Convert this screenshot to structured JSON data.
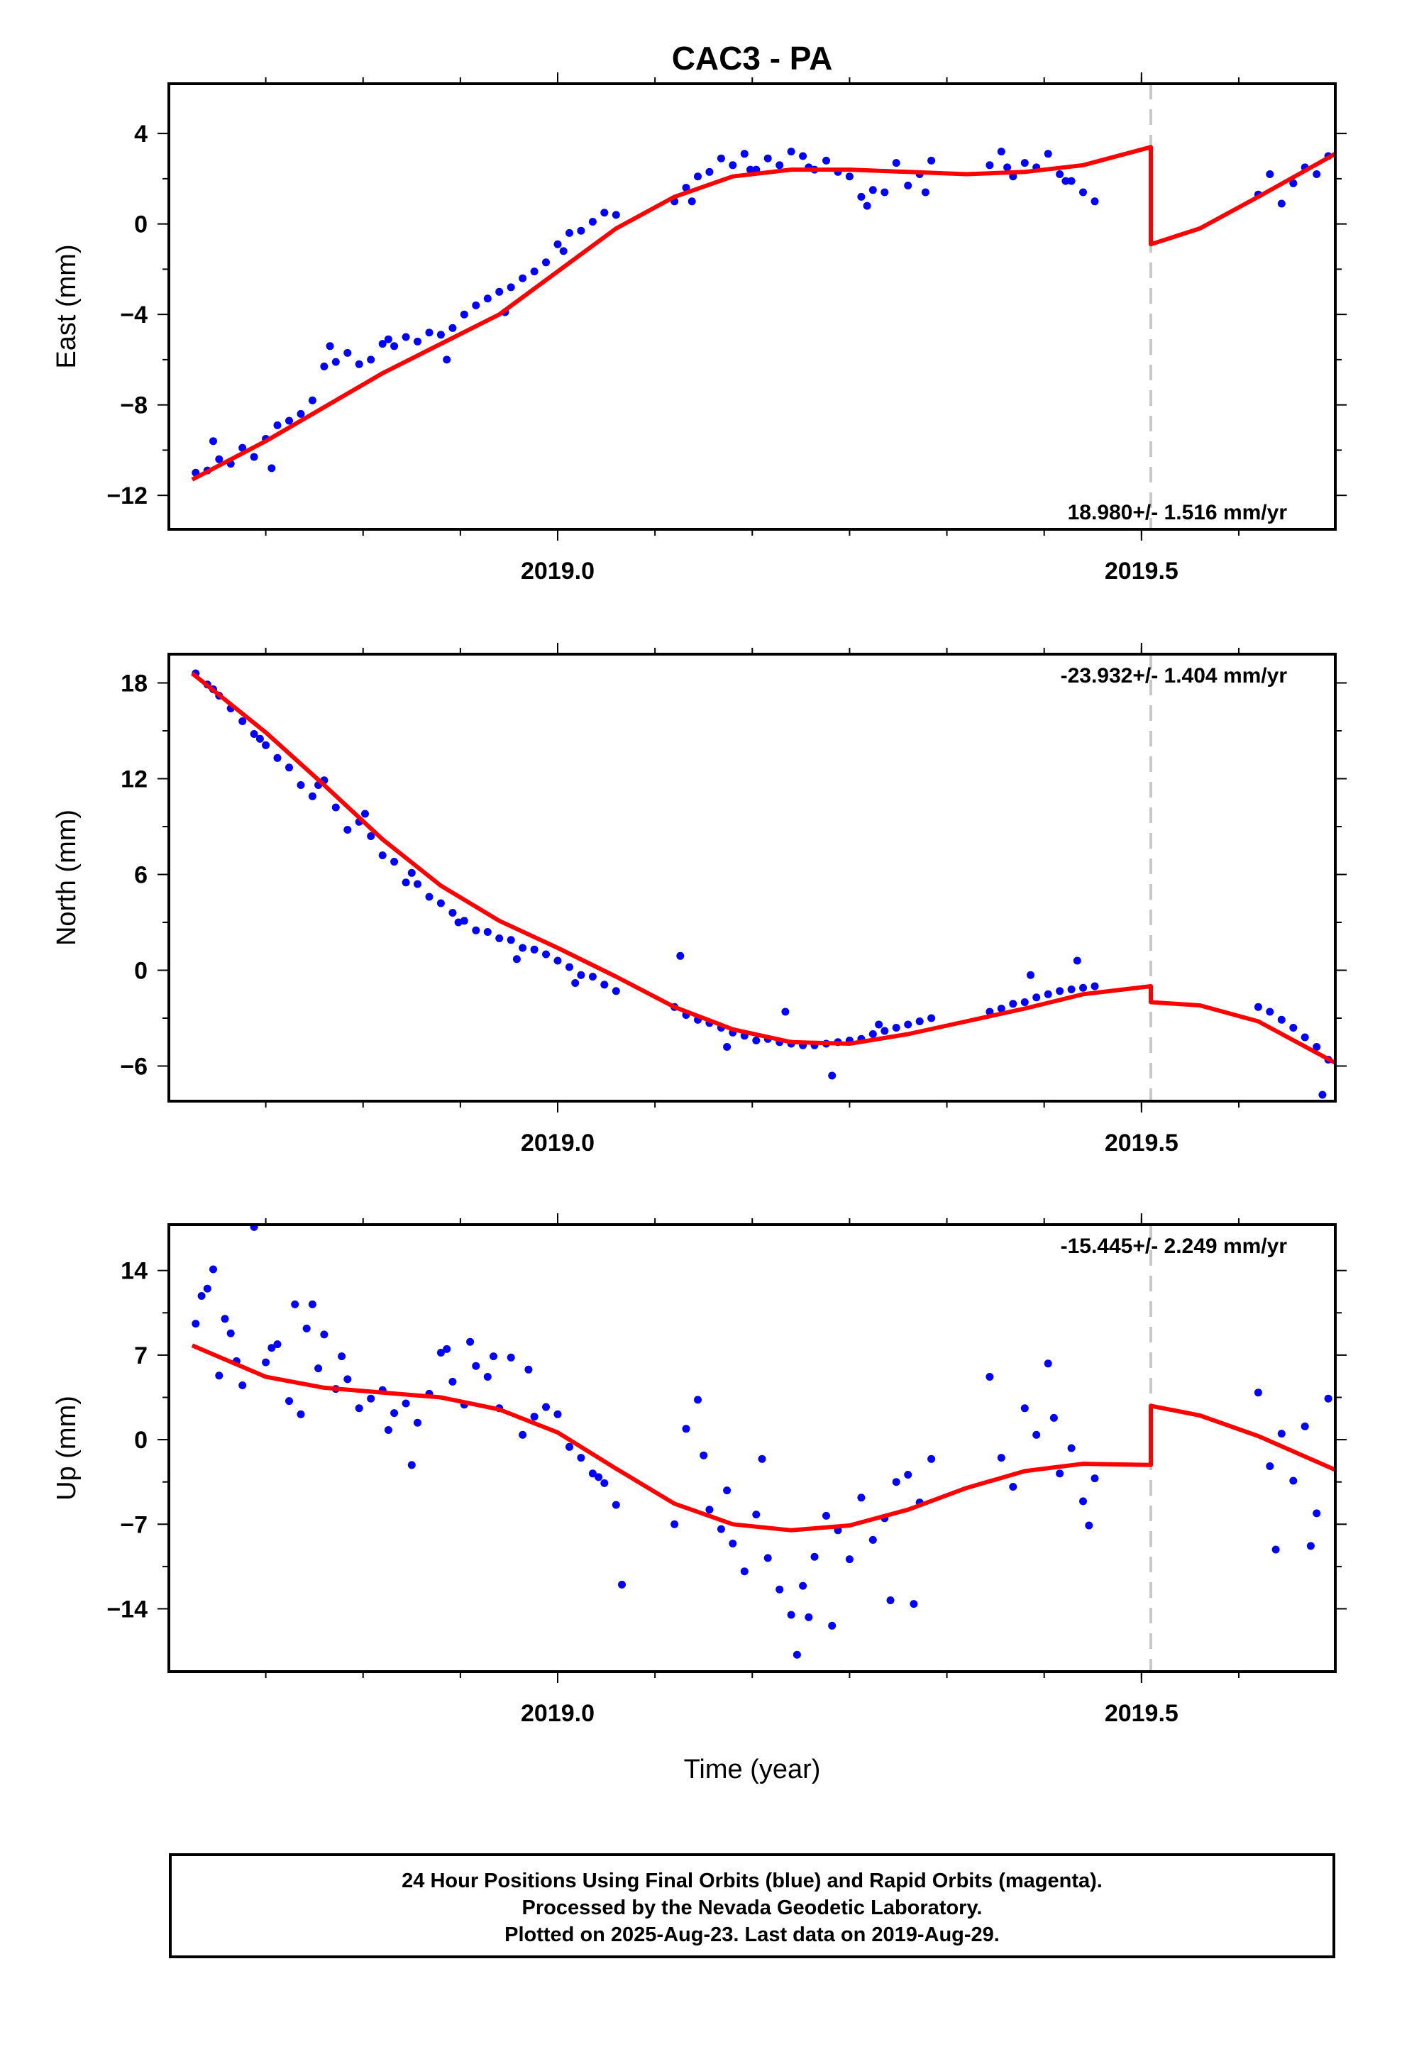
{
  "chart_data": [
    {
      "type": "scatter",
      "panel": "east",
      "title": "CAC3 - PA",
      "ylabel": "East (mm)",
      "xlabel": "",
      "xlim": [
        2018.667,
        2019.666
      ],
      "ylim": [
        -13.5,
        6.2
      ],
      "yticks": [
        4,
        0,
        -4,
        -8,
        -12
      ],
      "ytick_labels": [
        "4",
        "0",
        "−4",
        "−8",
        "−12"
      ],
      "xticks": [
        2019.0,
        2019.5
      ],
      "xtick_labels": [
        "2019.0",
        "2019.5"
      ],
      "rate_label": "18.980+/- 1.516 mm/yr",
      "offset_epoch": 2019.508,
      "series": [
        {
          "role": "observations",
          "x": [
            2018.69,
            2018.7,
            2018.71,
            2018.72,
            2018.73,
            2018.74,
            2018.75,
            2018.76,
            2018.77,
            2018.78,
            2018.79,
            2018.8,
            2018.81,
            2018.82,
            2018.83,
            2018.84,
            2018.85,
            2018.86,
            2018.87,
            2018.88,
            2018.89,
            2018.9,
            2018.91,
            2018.92,
            2018.93,
            2018.94,
            2018.95,
            2018.96,
            2018.97,
            2018.98,
            2018.99,
            2019.0,
            2019.01,
            2019.02,
            2019.03,
            2019.04,
            2019.05,
            2019.1,
            2019.11,
            2019.12,
            2019.13,
            2019.14,
            2019.15,
            2019.16,
            2019.17,
            2019.18,
            2019.19,
            2019.2,
            2019.21,
            2019.22,
            2019.23,
            2019.24,
            2019.25,
            2019.26,
            2019.27,
            2019.28,
            2019.29,
            2019.3,
            2019.31,
            2019.32,
            2019.37,
            2019.38,
            2019.39,
            2019.4,
            2019.41,
            2019.42,
            2019.43,
            2019.44,
            2019.45,
            2019.46,
            2019.6,
            2019.61,
            2019.62,
            2019.63,
            2019.64,
            2019.65,
            2019.66,
            2018.705,
            2018.755,
            2018.805,
            2018.855,
            2018.905,
            2018.955,
            2019.005,
            2019.115,
            2019.165,
            2019.215,
            2019.265,
            2019.315,
            2019.385,
            2019.435
          ],
          "y": [
            -11.0,
            -10.9,
            -10.4,
            -10.6,
            -9.9,
            -10.3,
            -9.5,
            -8.9,
            -8.7,
            -8.4,
            -7.8,
            -6.3,
            -6.1,
            -5.7,
            -6.2,
            -6.0,
            -5.3,
            -5.4,
            -5.0,
            -5.2,
            -4.8,
            -4.9,
            -4.6,
            -4.0,
            -3.6,
            -3.3,
            -3.0,
            -2.8,
            -2.4,
            -2.1,
            -1.7,
            -0.9,
            -0.4,
            -0.3,
            0.1,
            0.5,
            0.4,
            1.0,
            1.6,
            2.1,
            2.3,
            2.9,
            2.6,
            3.1,
            2.4,
            2.9,
            2.6,
            3.2,
            3.0,
            2.4,
            2.8,
            2.3,
            2.1,
            1.2,
            1.5,
            1.4,
            2.7,
            1.7,
            2.2,
            2.8,
            2.6,
            3.2,
            2.1,
            2.7,
            2.5,
            3.1,
            2.2,
            1.9,
            1.4,
            1.0,
            1.3,
            2.2,
            0.9,
            1.8,
            2.5,
            2.2,
            3.0,
            -9.6,
            -10.8,
            -5.4,
            -5.1,
            -6.0,
            -3.9,
            -1.2,
            1.0,
            2.4,
            2.5,
            0.8,
            1.4,
            2.5,
            1.9
          ]
        },
        {
          "role": "model",
          "x": [
            2018.687,
            2018.75,
            2018.8,
            2018.85,
            2018.9,
            2018.95,
            2019.0,
            2019.05,
            2019.1,
            2019.15,
            2019.2,
            2019.25,
            2019.3,
            2019.35,
            2019.4,
            2019.45,
            2019.508,
            2019.508,
            2019.55,
            2019.6,
            2019.666
          ],
          "y": [
            -11.3,
            -9.6,
            -8.1,
            -6.6,
            -5.3,
            -4.0,
            -2.1,
            -0.2,
            1.2,
            2.1,
            2.4,
            2.4,
            2.3,
            2.2,
            2.3,
            2.6,
            3.4,
            -0.9,
            -0.2,
            1.2,
            3.1
          ]
        }
      ]
    },
    {
      "type": "scatter",
      "panel": "north",
      "ylabel": "North (mm)",
      "xlabel": "",
      "xlim": [
        2018.667,
        2019.666
      ],
      "ylim": [
        -8.2,
        19.8
      ],
      "yticks": [
        18,
        12,
        6,
        0,
        -6
      ],
      "ytick_labels": [
        "18",
        "12",
        "6",
        "0",
        "−6"
      ],
      "xticks": [
        2019.0,
        2019.5
      ],
      "xtick_labels": [
        "2019.0",
        "2019.5"
      ],
      "rate_label": "-23.932+/- 1.404 mm/yr",
      "offset_epoch": 2019.508,
      "series": [
        {
          "role": "observations",
          "x": [
            2018.69,
            2018.7,
            2018.71,
            2018.72,
            2018.73,
            2018.74,
            2018.75,
            2018.76,
            2018.77,
            2018.78,
            2018.79,
            2018.8,
            2018.81,
            2018.82,
            2018.83,
            2018.84,
            2018.85,
            2018.86,
            2018.87,
            2018.88,
            2018.89,
            2018.9,
            2018.91,
            2018.92,
            2018.93,
            2018.94,
            2018.95,
            2018.96,
            2018.97,
            2018.98,
            2018.99,
            2019.0,
            2019.01,
            2019.02,
            2019.03,
            2019.04,
            2019.05,
            2019.1,
            2019.11,
            2019.12,
            2019.13,
            2019.14,
            2019.15,
            2019.16,
            2019.17,
            2019.18,
            2019.19,
            2019.2,
            2019.21,
            2019.22,
            2019.23,
            2019.24,
            2019.25,
            2019.26,
            2019.27,
            2019.28,
            2019.29,
            2019.3,
            2019.31,
            2019.32,
            2019.37,
            2019.38,
            2019.39,
            2019.4,
            2019.41,
            2019.42,
            2019.43,
            2019.44,
            2019.45,
            2019.46,
            2019.6,
            2019.61,
            2019.62,
            2019.63,
            2019.64,
            2019.65,
            2019.66,
            2018.705,
            2018.745,
            2018.795,
            2018.835,
            2018.875,
            2018.915,
            2018.965,
            2019.015,
            2019.105,
            2019.145,
            2019.195,
            2019.235,
            2019.275,
            2019.405,
            2019.445,
            2019.655
          ],
          "y": [
            18.6,
            17.9,
            17.2,
            16.4,
            15.6,
            14.8,
            14.1,
            13.3,
            12.7,
            11.6,
            10.9,
            11.9,
            10.2,
            8.8,
            9.3,
            8.4,
            7.2,
            6.8,
            5.5,
            5.4,
            4.6,
            4.2,
            3.6,
            3.1,
            2.5,
            2.4,
            2.0,
            1.9,
            1.4,
            1.3,
            1.0,
            0.6,
            0.2,
            -0.3,
            -0.4,
            -0.9,
            -1.3,
            -2.3,
            -2.8,
            -3.1,
            -3.3,
            -3.6,
            -3.9,
            -4.1,
            -4.4,
            -4.3,
            -4.5,
            -4.6,
            -4.7,
            -4.7,
            -4.6,
            -4.5,
            -4.4,
            -4.3,
            -4.0,
            -3.8,
            -3.6,
            -3.4,
            -3.2,
            -3.0,
            -2.6,
            -2.4,
            -2.1,
            -2.0,
            -1.7,
            -1.5,
            -1.3,
            -1.2,
            -1.1,
            -1.0,
            -2.3,
            -2.6,
            -3.1,
            -3.6,
            -4.2,
            -4.8,
            -5.6,
            17.6,
            14.5,
            11.6,
            9.8,
            6.1,
            3.0,
            0.7,
            -0.8,
            0.9,
            -4.8,
            -2.6,
            -6.6,
            -3.4,
            -0.3,
            0.6,
            -7.8
          ]
        },
        {
          "role": "model",
          "x": [
            2018.687,
            2018.75,
            2018.8,
            2018.85,
            2018.9,
            2018.95,
            2019.0,
            2019.05,
            2019.1,
            2019.15,
            2019.2,
            2019.25,
            2019.3,
            2019.35,
            2019.4,
            2019.45,
            2019.508,
            2019.508,
            2019.55,
            2019.6,
            2019.666
          ],
          "y": [
            18.6,
            14.9,
            11.6,
            8.2,
            5.3,
            3.1,
            1.4,
            -0.4,
            -2.3,
            -3.7,
            -4.5,
            -4.6,
            -4.0,
            -3.2,
            -2.4,
            -1.5,
            -1.0,
            -2.0,
            -2.2,
            -3.2,
            -5.8
          ]
        }
      ]
    },
    {
      "type": "scatter",
      "panel": "up",
      "ylabel": "Up (mm)",
      "xlabel": "Time (year)",
      "xlim": [
        2018.667,
        2019.666
      ],
      "ylim": [
        -19.2,
        17.8
      ],
      "yticks": [
        14,
        7,
        0,
        -7,
        -14
      ],
      "ytick_labels": [
        "14",
        "7",
        "0",
        "−7",
        "−14"
      ],
      "xticks": [
        2019.0,
        2019.5
      ],
      "xtick_labels": [
        "2019.0",
        "2019.5"
      ],
      "rate_label": "-15.445+/- 2.249 mm/yr",
      "offset_epoch": 2019.508,
      "series": [
        {
          "role": "observations",
          "x": [
            2018.69,
            2018.7,
            2018.71,
            2018.72,
            2018.73,
            2018.74,
            2018.75,
            2018.76,
            2018.77,
            2018.78,
            2018.79,
            2018.8,
            2018.81,
            2018.82,
            2018.83,
            2018.84,
            2018.85,
            2018.86,
            2018.87,
            2018.88,
            2018.89,
            2018.9,
            2018.91,
            2018.92,
            2018.93,
            2018.94,
            2018.95,
            2018.96,
            2018.97,
            2018.98,
            2018.99,
            2019.0,
            2019.01,
            2019.02,
            2019.03,
            2019.04,
            2019.05,
            2019.1,
            2019.11,
            2019.12,
            2019.13,
            2019.14,
            2019.15,
            2019.16,
            2019.17,
            2019.18,
            2019.19,
            2019.2,
            2019.21,
            2019.22,
            2019.23,
            2019.24,
            2019.25,
            2019.26,
            2019.27,
            2019.28,
            2019.29,
            2019.3,
            2019.31,
            2019.32,
            2019.37,
            2019.38,
            2019.39,
            2019.4,
            2019.41,
            2019.42,
            2019.43,
            2019.44,
            2019.45,
            2019.46,
            2019.6,
            2019.61,
            2019.62,
            2019.63,
            2019.64,
            2019.65,
            2019.66,
            2018.695,
            2018.705,
            2018.715,
            2018.725,
            2018.755,
            2018.775,
            2018.785,
            2018.795,
            2018.815,
            2018.855,
            2018.875,
            2018.905,
            2018.925,
            2018.945,
            2018.975,
            2019.035,
            2019.055,
            2019.125,
            2019.145,
            2019.175,
            2019.205,
            2019.215,
            2019.235,
            2019.285,
            2019.305,
            2019.425,
            2019.455,
            2019.615,
            2019.645
          ],
          "y": [
            9.6,
            12.5,
            5.3,
            8.8,
            4.5,
            17.6,
            6.4,
            7.9,
            3.2,
            2.1,
            11.2,
            8.7,
            4.2,
            5.0,
            2.6,
            3.4,
            4.1,
            2.2,
            3.0,
            1.4,
            3.8,
            7.2,
            4.8,
            2.9,
            6.1,
            5.2,
            2.6,
            6.8,
            0.4,
            1.9,
            2.7,
            2.1,
            -0.6,
            -1.5,
            -2.8,
            -3.6,
            -5.4,
            -7.0,
            0.9,
            3.3,
            -5.8,
            -7.4,
            -8.6,
            -10.9,
            -6.2,
            -9.8,
            -12.4,
            -14.5,
            -12.1,
            -9.7,
            -6.3,
            -7.5,
            -9.9,
            -4.8,
            -8.3,
            -6.5,
            -3.5,
            -2.9,
            -5.2,
            -1.6,
            5.2,
            -1.5,
            -3.9,
            2.6,
            0.4,
            6.3,
            -2.8,
            -0.7,
            -5.1,
            -3.2,
            3.9,
            -2.2,
            0.5,
            -3.4,
            1.1,
            -6.1,
            3.4,
            11.9,
            14.1,
            10.0,
            6.5,
            7.6,
            11.2,
            9.2,
            5.9,
            6.9,
            0.8,
            -2.1,
            7.5,
            8.1,
            6.9,
            5.8,
            -3.1,
            -12.0,
            -1.3,
            -4.2,
            -1.6,
            -17.8,
            -14.7,
            -15.4,
            -13.3,
            -13.6,
            1.8,
            -7.1,
            -9.1,
            -8.8
          ]
        },
        {
          "role": "model",
          "x": [
            2018.687,
            2018.75,
            2018.8,
            2018.85,
            2018.9,
            2018.95,
            2019.0,
            2019.05,
            2019.1,
            2019.15,
            2019.2,
            2019.25,
            2019.3,
            2019.35,
            2019.4,
            2019.45,
            2019.508,
            2019.508,
            2019.55,
            2019.6,
            2019.666
          ],
          "y": [
            7.8,
            5.2,
            4.3,
            3.9,
            3.5,
            2.5,
            0.6,
            -2.4,
            -5.3,
            -7.0,
            -7.5,
            -7.1,
            -5.8,
            -4.0,
            -2.6,
            -2.0,
            -2.1,
            2.8,
            2.0,
            0.3,
            -2.5
          ]
        }
      ]
    }
  ],
  "caption": {
    "line1": "24 Hour Positions Using Final Orbits (blue) and Rapid Orbits (magenta).",
    "line2": "Processed by the Nevada Geodetic Laboratory.",
    "line3": "Plotted on 2025-Aug-23. Last data on 2019-Aug-29."
  },
  "colors": {
    "observations": "#0000ff",
    "model": "#ff0000",
    "offset_line": "#c8c8c8",
    "frame": "#000000"
  }
}
